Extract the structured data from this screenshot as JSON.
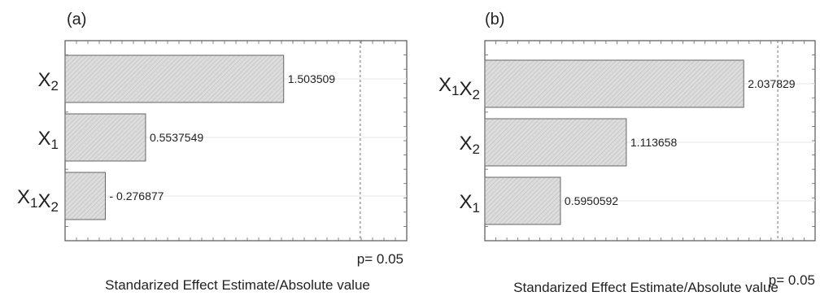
{
  "chart_data": [
    {
      "type": "bar",
      "orientation": "horizontal",
      "panel_label": "(a)",
      "categories": [
        "X2",
        "X1",
        "X1X2"
      ],
      "category_display": [
        {
          "parts": [
            [
              "X",
              "2"
            ]
          ]
        },
        {
          "parts": [
            [
              "X",
              "1"
            ]
          ]
        },
        {
          "parts": [
            [
              "X",
              "1"
            ],
            [
              "X",
              "2"
            ]
          ]
        }
      ],
      "values": [
        1.503509,
        0.5537549,
        -0.276877
      ],
      "value_labels": [
        "1.503509",
        "0.5537549",
        "- 0.276877"
      ],
      "reference_line": {
        "value": 2.03,
        "label": "p= 0.05"
      },
      "xlim": [
        0,
        2.35
      ],
      "xlabel": "Standarized Effect Estimate/Absolute value",
      "ylabel": "",
      "grid": "horizontal",
      "bar_fill": "#d9d9d9"
    },
    {
      "type": "bar",
      "orientation": "horizontal",
      "panel_label": "(b)",
      "categories": [
        "X1X2",
        "X2",
        "X1"
      ],
      "category_display": [
        {
          "parts": [
            [
              "X",
              "1"
            ],
            [
              "X",
              "2"
            ]
          ]
        },
        {
          "parts": [
            [
              "X",
              "2"
            ]
          ]
        },
        {
          "parts": [
            [
              "X",
              "1"
            ]
          ]
        }
      ],
      "values": [
        2.037829,
        1.113658,
        0.5950592
      ],
      "value_labels": [
        "2.037829",
        "1.113658",
        "0.5950592"
      ],
      "reference_line": {
        "value": 2.306,
        "label": "p= 0.05"
      },
      "xlim": [
        0,
        2.6
      ],
      "xlabel": "Standarized Effect Estimate/Absolute value",
      "ylabel": "",
      "grid": "horizontal",
      "bar_fill": "#d9d9d9"
    }
  ]
}
